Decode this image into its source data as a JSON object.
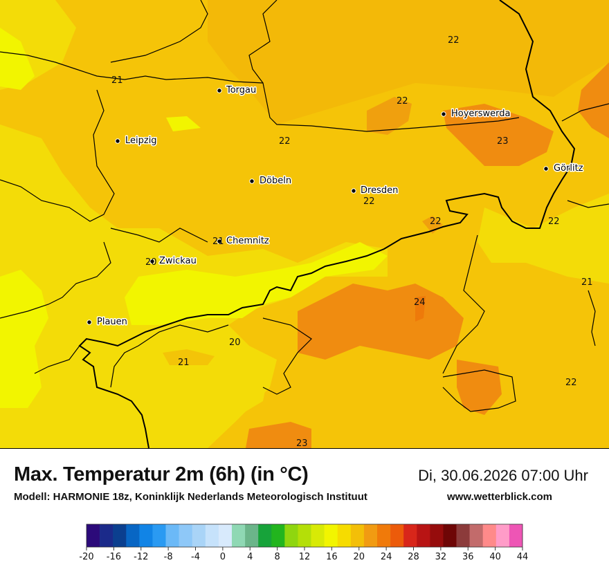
{
  "title": "Max. Temperatur 2m (6h) (in °C)",
  "datetime": "Di, 30.06.2026 07:00 Uhr",
  "model": "Modell: HARMONIE 18z, Koninklijk Nederlands Meteorologisch Instituut",
  "website": "www.wetterblick.com",
  "cities": [
    {
      "name": "Torgau"
    },
    {
      "name": "Leipzig"
    },
    {
      "name": "Döbeln"
    },
    {
      "name": "Dresden"
    },
    {
      "name": "Hoyerswerda"
    },
    {
      "name": "Görlitz"
    },
    {
      "name": "Chemnitz"
    },
    {
      "name": "Zwickau"
    },
    {
      "name": "Plauen"
    }
  ],
  "iso_labels": [
    "22",
    "21",
    "22",
    "22",
    "23",
    "22",
    "22",
    "22",
    "21",
    "24",
    "20",
    "21",
    "22",
    "23",
    "21",
    "20"
  ],
  "legend": {
    "tick_labels": [
      "-20",
      "-16",
      "-12",
      "-8",
      "-4",
      "0",
      "4",
      "8",
      "12",
      "16",
      "20",
      "24",
      "28",
      "32",
      "36",
      "40",
      "44"
    ],
    "colors": [
      "#2c0a7a",
      "#1b2a8a",
      "#0b3f8f",
      "#0866c4",
      "#1184e6",
      "#2a9af2",
      "#6bb9f7",
      "#8ec8f8",
      "#a9d4f7",
      "#c6e2fb",
      "#d8eafc",
      "#8fd8b4",
      "#6bb58a",
      "#17a33a",
      "#22b51e",
      "#8fd60f",
      "#b4df08",
      "#d8ea06",
      "#f2f500",
      "#f6dc00",
      "#f3bf08",
      "#f19b12",
      "#f07a0a",
      "#ec5b0a",
      "#d8261a",
      "#b81414",
      "#960c0c",
      "#6e0606",
      "#8c3b3b",
      "#c26b6b",
      "#ff8a8a",
      "#ff9cc8",
      "#ee55b5"
    ]
  }
}
